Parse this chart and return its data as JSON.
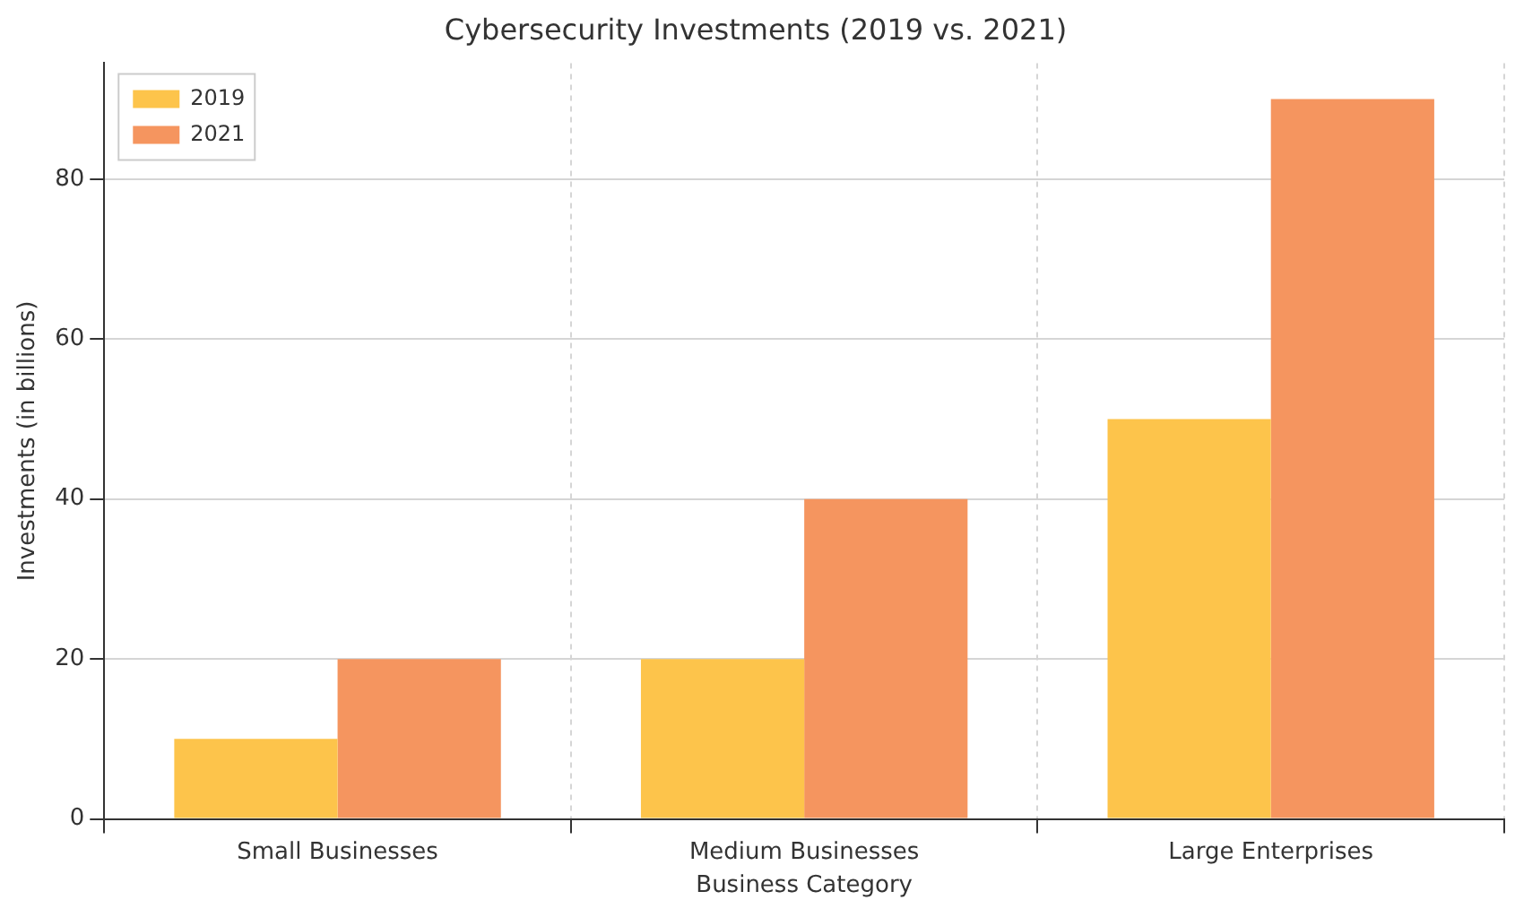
{
  "chart_data": {
    "type": "bar",
    "title": "Cybersecurity Investments (2019 vs. 2021)",
    "xlabel": "Business Category",
    "ylabel": "Investments (in billions)",
    "categories": [
      "Small Businesses",
      "Medium Businesses",
      "Large Enterprises"
    ],
    "series": [
      {
        "name": "2019",
        "color": "#fdc44b",
        "values": [
          10,
          20,
          50
        ]
      },
      {
        "name": "2021",
        "color": "#f5955f",
        "values": [
          20,
          40,
          90
        ]
      }
    ],
    "ylim": [
      0,
      94.5
    ],
    "yticks": [
      0,
      20,
      40,
      60,
      80
    ],
    "grid": true,
    "legend": "top left"
  }
}
